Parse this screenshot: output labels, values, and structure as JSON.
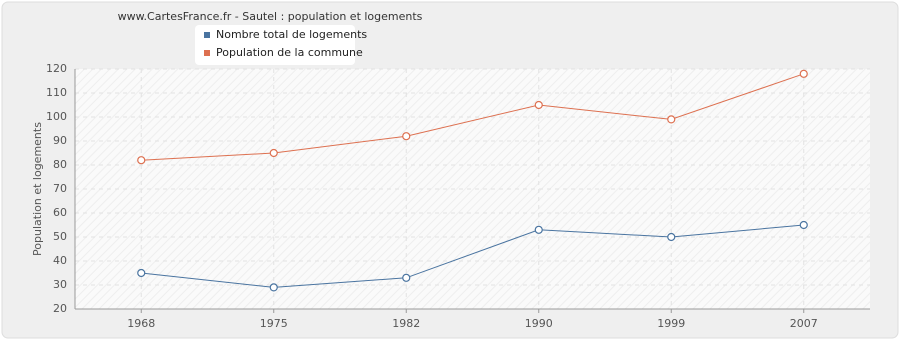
{
  "chart_data": {
    "type": "line",
    "title": "www.CartesFrance.fr - Sautel : population et logements",
    "y_label": "Population et logements",
    "categories": [
      "1968",
      "1975",
      "1982",
      "1990",
      "1999",
      "2007"
    ],
    "series": [
      {
        "name": "Nombre total de logements",
        "color": "#4a74a0",
        "values": [
          35,
          29,
          33,
          53,
          50,
          55
        ]
      },
      {
        "name": "Population de la commune",
        "color": "#dd7050",
        "values": [
          82,
          85,
          92,
          105,
          99,
          118
        ]
      }
    ],
    "ylim": [
      20,
      120
    ],
    "yticks": [
      20,
      30,
      40,
      50,
      60,
      70,
      80,
      90,
      100,
      110,
      120
    ],
    "grid": true
  }
}
